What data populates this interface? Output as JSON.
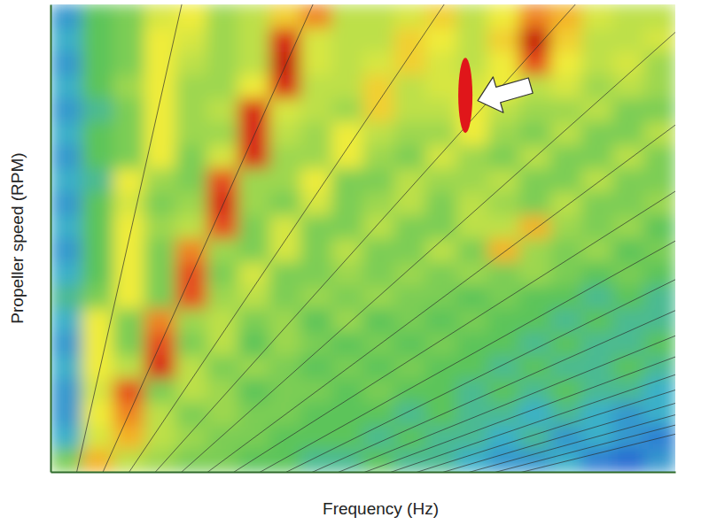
{
  "chart_data": {
    "type": "heatmap",
    "x_label": "Frequency (Hz)",
    "y_label": "Propeller speed (RPM)",
    "xlim": [
      0,
      100
    ],
    "ylim": [
      25,
      125
    ],
    "tick_labels": false,
    "x_bins": [
      0,
      5,
      10,
      15,
      20,
      25,
      30,
      35,
      40,
      45,
      50,
      55,
      60,
      65,
      70,
      75,
      80,
      85,
      90,
      95,
      100
    ],
    "y_bins": [
      25,
      30,
      35,
      40,
      45,
      50,
      55,
      60,
      65,
      70,
      75,
      80,
      85,
      90,
      95,
      100,
      105,
      110,
      115,
      120,
      125
    ],
    "zlim": [
      0,
      10
    ],
    "z": [
      [
        5,
        8,
        6,
        5.5,
        5,
        5,
        4.5,
        4.5,
        4,
        4,
        4.5,
        4,
        4,
        3.5,
        3,
        3,
        3.5,
        2.5,
        2,
        3
      ],
      [
        3.5,
        6.5,
        8,
        6,
        5.5,
        5,
        5,
        4.5,
        4.5,
        4.5,
        4,
        4.5,
        4,
        4,
        3.5,
        4,
        3,
        3.5,
        3,
        2.5
      ],
      [
        3,
        7,
        8.5,
        6,
        5,
        5.5,
        5,
        5,
        4.5,
        4.5,
        4.5,
        4,
        4.5,
        4,
        4,
        3.5,
        4,
        3.5,
        3,
        3.5
      ],
      [
        3,
        6.5,
        9,
        5,
        6,
        5.5,
        4.5,
        5,
        5,
        4.5,
        5,
        4.5,
        4.5,
        4,
        4.5,
        4,
        4.5,
        4,
        4,
        3.5
      ],
      [
        3.5,
        7,
        6,
        9.5,
        6,
        5,
        5.5,
        5,
        4.5,
        5,
        4.5,
        5,
        4.5,
        4.5,
        4,
        4.5,
        4,
        4,
        4.5,
        4
      ],
      [
        3,
        7,
        5,
        9,
        5,
        6,
        4.5,
        5.5,
        5,
        4.5,
        5,
        4.5,
        5,
        4.5,
        4.5,
        4,
        4.5,
        4,
        4,
        4.5
      ],
      [
        3.5,
        7,
        5,
        8.5,
        5.5,
        6,
        5,
        5.5,
        4.5,
        5.5,
        4.5,
        5,
        4.5,
        5,
        4.5,
        4.5,
        4,
        4.5,
        4,
        4
      ],
      [
        4,
        5,
        7,
        5,
        9,
        5.5,
        6,
        5,
        5.5,
        5,
        5.5,
        5,
        5,
        4.5,
        5,
        4.5,
        4.5,
        4,
        4.5,
        4
      ],
      [
        3.5,
        4.5,
        7,
        5,
        9,
        5,
        6.5,
        5,
        5,
        5.5,
        5,
        5.5,
        5,
        5.5,
        5,
        5.5,
        5,
        4.5,
        5,
        4.5
      ],
      [
        3,
        4.5,
        7,
        5,
        8.5,
        5.5,
        5,
        6.5,
        5,
        6,
        5,
        5,
        6,
        5,
        8,
        5.5,
        5,
        5.5,
        4.5,
        5
      ],
      [
        3.5,
        4.5,
        7,
        5.5,
        6,
        9,
        5,
        6.5,
        5,
        5,
        6,
        5,
        5,
        6,
        6,
        8,
        5.5,
        5,
        5.5,
        4.5
      ],
      [
        3,
        4.5,
        6.5,
        5,
        5.5,
        9.5,
        5.5,
        5,
        6.5,
        5,
        5.5,
        6,
        5,
        6,
        5.5,
        5,
        6,
        5,
        5,
        5.5
      ],
      [
        3.5,
        4,
        7,
        5.5,
        5,
        9,
        5.5,
        5.5,
        7,
        5,
        5,
        6,
        5.5,
        5.5,
        6,
        5,
        5,
        6,
        5,
        5
      ],
      [
        3,
        4.5,
        5,
        7,
        5,
        6.5,
        9.5,
        5.5,
        5.5,
        7,
        5.5,
        5,
        6.5,
        5.5,
        5,
        6,
        5,
        5,
        6,
        5
      ],
      [
        3.5,
        4.5,
        5,
        7,
        5.5,
        5.5,
        9.5,
        6,
        5.5,
        7,
        6,
        5.5,
        5.5,
        7,
        5.5,
        5,
        6,
        5,
        5,
        6
      ],
      [
        3,
        4,
        5,
        7,
        5.5,
        6,
        9.5,
        6.5,
        6,
        5.5,
        7.5,
        6,
        6,
        7,
        6,
        5.5,
        5.5,
        6,
        5,
        5
      ],
      [
        3.5,
        4.5,
        5.5,
        7,
        5.5,
        5.5,
        7,
        9.5,
        6,
        6,
        7.5,
        6,
        6.5,
        6.5,
        7,
        6,
        6.5,
        5.5,
        6,
        5.5
      ],
      [
        3,
        4.5,
        5,
        7,
        6,
        5.5,
        6,
        10,
        6.5,
        6,
        6.5,
        7.5,
        6.5,
        6,
        7,
        9,
        7,
        6,
        6.5,
        5.5
      ],
      [
        3.5,
        4.5,
        5,
        7,
        6.5,
        5.5,
        6,
        9.5,
        6.5,
        6,
        6,
        7.5,
        7,
        6,
        7.5,
        10,
        7.5,
        6,
        6,
        6.5
      ],
      [
        3,
        4.5,
        5,
        6.5,
        7,
        5.5,
        6,
        7.5,
        8.5,
        6,
        6,
        6.5,
        7.5,
        6,
        7,
        8.5,
        8,
        6.5,
        6,
        6
      ]
    ],
    "order_lines": [
      0.168,
      0.336,
      0.504,
      0.672,
      0.84,
      1.008,
      1.176,
      1.344,
      1.512,
      1.68,
      1.848,
      2.016,
      2.184,
      2.352,
      2.52,
      2.688,
      2.856,
      3.024
    ],
    "resonance": {
      "x": 66.4,
      "y": [
        97.5,
        113.6
      ]
    }
  }
}
